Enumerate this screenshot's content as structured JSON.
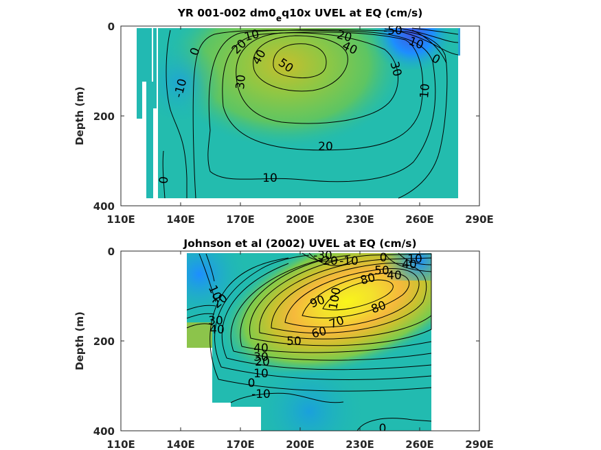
{
  "figure": {
    "colormap": [
      "#3e26a8",
      "#1d8eff",
      "#1fbaae",
      "#72c955",
      "#c4bf2d",
      "#fdbc3c",
      "#f9fb15"
    ],
    "clim": [
      -60,
      120
    ]
  },
  "chart_data": [
    {
      "type": "contour",
      "title": {
        "pre": "YR 001-002 dm0",
        "sub": "e",
        "post": "q10x UVEL at EQ (cm/s)"
      },
      "xlabel": "",
      "ylabel": "Depth (m)",
      "xlim": [
        110,
        290
      ],
      "ylim": [
        400,
        0
      ],
      "xticks": [
        110,
        140,
        170,
        200,
        230,
        260,
        290
      ],
      "xticklabels": [
        "110E",
        "140E",
        "170E",
        "200E",
        "230E",
        "260E",
        "290E"
      ],
      "yticks": [
        0,
        200,
        400
      ],
      "yticklabels": [
        "0",
        "200",
        "400"
      ],
      "contour_interval": 10,
      "contour_labels": [
        "0",
        "-10",
        "0",
        "10",
        "20",
        "30",
        "40",
        "50",
        "-50",
        "10",
        "0",
        "20",
        "40",
        "30",
        "10",
        "20",
        "10",
        "0"
      ],
      "core": {
        "lon": 200,
        "depth": 75,
        "max_speed": 53
      },
      "surface_westward_max": {
        "lon": 255,
        "value": -50
      },
      "data_extent": {
        "lon": [
          118,
          278
        ],
        "depth": [
          0,
          385
        ]
      }
    },
    {
      "type": "contour",
      "title": {
        "pre": "Johnson et al (2002) UVEL at EQ (cm/s)",
        "sub": "",
        "post": ""
      },
      "xlabel": "",
      "ylabel": "Depth (m)",
      "xlim": [
        110,
        290
      ],
      "ylim": [
        400,
        0
      ],
      "xticks": [
        110,
        140,
        170,
        200,
        230,
        260,
        290
      ],
      "xticklabels": [
        "110E",
        "140E",
        "170E",
        "200E",
        "230E",
        "260E",
        "290E"
      ],
      "yticks": [
        0,
        200,
        400
      ],
      "yticklabels": [
        "0",
        "200",
        "400"
      ],
      "contour_interval": 10,
      "contour_labels": [
        "-30",
        "-20",
        "-10",
        "0",
        "10",
        "50",
        "40",
        "40",
        "10",
        "20",
        "30",
        "40",
        "90",
        "100",
        "80",
        "80",
        "70",
        "60",
        "50",
        "40",
        "30",
        "20",
        "10",
        "0",
        "-10",
        "0"
      ],
      "core": {
        "lon": 218,
        "depth": 110,
        "max_speed": 105
      },
      "surface_westward_max": {
        "lon": 200,
        "value": -35
      },
      "data_extent": {
        "lon": [
          143,
          262
        ],
        "depth": [
          0,
          400
        ]
      }
    }
  ]
}
